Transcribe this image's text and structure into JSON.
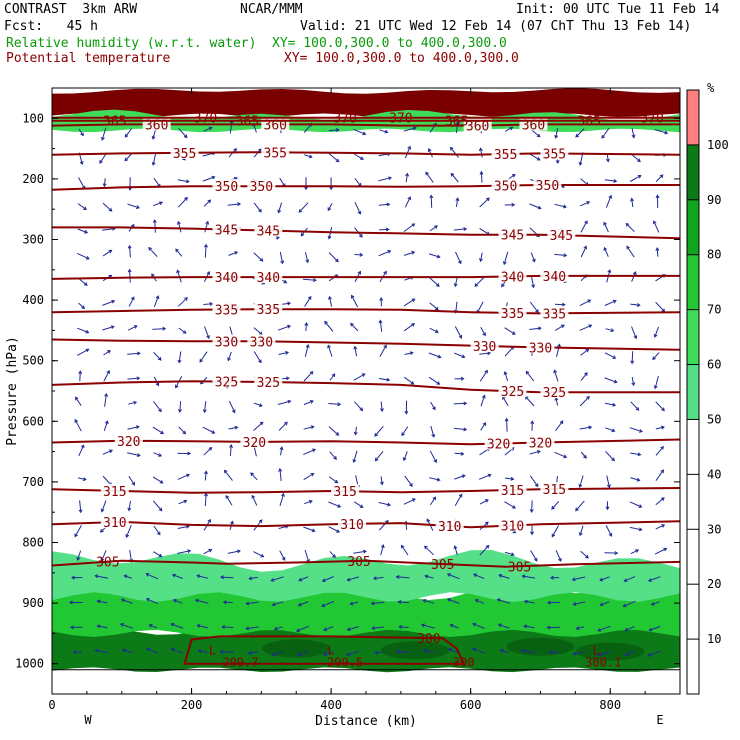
{
  "header": {
    "model": "CONTRAST  3km ARW",
    "center": "NCAR/MMM",
    "init": "Init: 00 UTC Tue 11 Feb 14",
    "fcst": "Fcst:   45 h",
    "valid": "Valid: 21 UTC Wed 12 Feb 14 (07 ChT Thu 13 Feb 14)",
    "rh_field": "Relative humidity (w.r.t. water)",
    "rh_xy": "XY= 100.0,300.0 to 400.0,300.0",
    "theta_field": "Potential temperature",
    "theta_xy": "XY= 100.0,300.0 to 400.0,300.0"
  },
  "colors": {
    "theta_line": "#8b0000",
    "wind_arrow": "#1e2a96",
    "rh_50_60": "#55e088",
    "rh_60_70": "#3fdc5a",
    "rh_70_80": "#22c833",
    "rh_80_90": "#11a51f",
    "rh_90_100": "#0c7a16",
    "rh_100_plus": "#ff7f7f"
  },
  "chart_data": {
    "type": "heatmap",
    "xlabel": "Distance (km)",
    "ylabel": "Pressure (hPa)",
    "x_range": [
      0,
      900
    ],
    "y_range": [
      1050,
      50
    ],
    "y_scale": "linear, inverted",
    "x_ticks": [
      "0",
      "200",
      "400",
      "600",
      "800"
    ],
    "y_ticks": [
      "100",
      "200",
      "300",
      "400",
      "500",
      "600",
      "700",
      "800",
      "900",
      "1000"
    ],
    "x_end_labels": {
      "left": "W",
      "right": "E"
    },
    "colorbar": {
      "unit": "%",
      "levels": [
        "10",
        "20",
        "30",
        "40",
        "50",
        "60",
        "70",
        "80",
        "90",
        "100"
      ],
      "filled_bins": [
        {
          "from": 50,
          "to": 60,
          "color": "#55e088"
        },
        {
          "from": 60,
          "to": 70,
          "color": "#3fdc5a"
        },
        {
          "from": 70,
          "to": 80,
          "color": "#22c833"
        },
        {
          "from": 80,
          "to": 90,
          "color": "#11a51f"
        },
        {
          "from": 90,
          "to": 100,
          "color": "#0c7a16"
        },
        {
          "from": 100,
          "to": 110,
          "color": "#ff7f7f"
        }
      ]
    },
    "rh_regions": [
      {
        "name": "stratosphere-cap",
        "p_top": 55,
        "p_bottom": 95,
        "rh": ">100",
        "color": "#7a0000"
      },
      {
        "name": "tropopause-moist-band",
        "p_top": 95,
        "p_bottom": 120,
        "rh": "60-90",
        "color": "#3fdc5a"
      },
      {
        "name": "boundary-layer-lower",
        "p_top": 940,
        "p_bottom": 1010,
        "rh": "90-100",
        "color": "#0c7a16"
      },
      {
        "name": "boundary-layer-mid",
        "p_top": 880,
        "p_bottom": 950,
        "rh": "70-90",
        "color": "#22c833"
      },
      {
        "name": "boundary-layer-top",
        "p_top": 830,
        "p_bottom": 890,
        "rh": "50-70",
        "color": "#55e088"
      }
    ],
    "theta_contours": [
      {
        "level": "300",
        "p": [
          1000,
          960,
          955,
          955,
          958,
          975,
          1000
        ],
        "x": [
          190,
          200,
          240,
          400,
          560,
          580,
          590
        ],
        "labels": [
          {
            "x": 540,
            "text": "300"
          }
        ]
      },
      {
        "level": "305",
        "p": [
          838,
          830,
          833,
          835,
          833,
          830,
          835,
          840,
          836,
          832
        ],
        "x": [
          0,
          100,
          200,
          250,
          350,
          450,
          550,
          650,
          750,
          900
        ],
        "labels": [
          {
            "x": 80,
            "text": "305"
          },
          {
            "x": 440,
            "text": "305"
          },
          {
            "x": 560,
            "text": "305"
          },
          {
            "x": 670,
            "text": "305"
          }
        ]
      },
      {
        "level": "310",
        "p": [
          770,
          766,
          771,
          773,
          770,
          768,
          775,
          770,
          765
        ],
        "x": [
          0,
          100,
          200,
          300,
          400,
          500,
          600,
          700,
          900
        ],
        "labels": [
          {
            "x": 90,
            "text": "310"
          },
          {
            "x": 430,
            "text": "310"
          },
          {
            "x": 570,
            "text": "310"
          },
          {
            "x": 660,
            "text": "310"
          }
        ]
      },
      {
        "level": "315",
        "p": [
          712,
          715,
          718,
          717,
          715,
          717,
          715,
          712,
          710
        ],
        "x": [
          0,
          100,
          200,
          300,
          400,
          500,
          600,
          700,
          900
        ],
        "labels": [
          {
            "x": 90,
            "text": "315"
          },
          {
            "x": 420,
            "text": "315"
          },
          {
            "x": 660,
            "text": "315"
          },
          {
            "x": 720,
            "text": "315"
          }
        ]
      },
      {
        "level": "320",
        "p": [
          635,
          632,
          633,
          634,
          633,
          635,
          638,
          635,
          630
        ],
        "x": [
          0,
          100,
          200,
          300,
          400,
          500,
          600,
          700,
          900
        ],
        "labels": [
          {
            "x": 110,
            "text": "320"
          },
          {
            "x": 290,
            "text": "320"
          },
          {
            "x": 640,
            "text": "320"
          },
          {
            "x": 700,
            "text": "320"
          }
        ]
      },
      {
        "level": "325",
        "p": [
          540,
          536,
          534,
          535,
          537,
          540,
          548,
          552,
          552
        ],
        "x": [
          0,
          100,
          200,
          300,
          400,
          500,
          600,
          700,
          900
        ],
        "labels": [
          {
            "x": 250,
            "text": "325"
          },
          {
            "x": 310,
            "text": "325"
          },
          {
            "x": 660,
            "text": "325"
          },
          {
            "x": 720,
            "text": "325"
          }
        ]
      },
      {
        "level": "330",
        "p": [
          465,
          467,
          468,
          468,
          470,
          472,
          475,
          478,
          482
        ],
        "x": [
          0,
          100,
          200,
          300,
          400,
          500,
          600,
          700,
          900
        ],
        "labels": [
          {
            "x": 250,
            "text": "330"
          },
          {
            "x": 300,
            "text": "330"
          },
          {
            "x": 620,
            "text": "330"
          },
          {
            "x": 700,
            "text": "330"
          }
        ]
      },
      {
        "level": "335",
        "p": [
          420,
          418,
          416,
          415,
          415,
          416,
          420,
          422,
          420
        ],
        "x": [
          0,
          100,
          200,
          300,
          400,
          500,
          600,
          700,
          900
        ],
        "labels": [
          {
            "x": 250,
            "text": "335"
          },
          {
            "x": 310,
            "text": "335"
          },
          {
            "x": 660,
            "text": "335"
          },
          {
            "x": 720,
            "text": "335"
          }
        ]
      },
      {
        "level": "340",
        "p": [
          365,
          363,
          362,
          362,
          362,
          362,
          362,
          360,
          360
        ],
        "x": [
          0,
          100,
          200,
          300,
          400,
          500,
          600,
          700,
          900
        ],
        "labels": [
          {
            "x": 250,
            "text": "340"
          },
          {
            "x": 310,
            "text": "340"
          },
          {
            "x": 660,
            "text": "340"
          },
          {
            "x": 720,
            "text": "340"
          }
        ]
      },
      {
        "level": "345",
        "p": [
          280,
          280,
          282,
          285,
          288,
          290,
          292,
          292,
          298
        ],
        "x": [
          0,
          100,
          200,
          300,
          400,
          500,
          600,
          700,
          900
        ],
        "labels": [
          {
            "x": 250,
            "text": "345"
          },
          {
            "x": 310,
            "text": "345"
          },
          {
            "x": 660,
            "text": "345"
          },
          {
            "x": 730,
            "text": "345"
          }
        ]
      },
      {
        "level": "350",
        "p": [
          218,
          214,
          212,
          212,
          212,
          213,
          212,
          210,
          210
        ],
        "x": [
          0,
          100,
          200,
          300,
          400,
          500,
          600,
          700,
          900
        ],
        "labels": [
          {
            "x": 250,
            "text": "350"
          },
          {
            "x": 300,
            "text": "350"
          },
          {
            "x": 650,
            "text": "350"
          },
          {
            "x": 710,
            "text": "350"
          }
        ]
      },
      {
        "level": "355",
        "p": [
          160,
          158,
          157,
          156,
          157,
          158,
          160,
          158,
          160
        ],
        "x": [
          0,
          100,
          200,
          300,
          400,
          500,
          600,
          700,
          900
        ],
        "labels": [
          {
            "x": 190,
            "text": "355"
          },
          {
            "x": 320,
            "text": "355"
          },
          {
            "x": 650,
            "text": "355"
          },
          {
            "x": 720,
            "text": "355"
          }
        ]
      },
      {
        "level": "360",
        "p": [
          112,
          110,
          110,
          110,
          110,
          112,
          112,
          110,
          110
        ],
        "x": [
          0,
          100,
          200,
          300,
          400,
          500,
          600,
          700,
          900
        ],
        "labels": [
          {
            "x": 150,
            "text": "360"
          },
          {
            "x": 320,
            "text": "360"
          },
          {
            "x": 610,
            "text": "360"
          },
          {
            "x": 690,
            "text": "360"
          }
        ]
      },
      {
        "level": "365",
        "p": [
          104,
          104,
          104,
          104,
          104,
          104,
          104,
          104,
          104
        ],
        "x": [
          0,
          100,
          200,
          300,
          400,
          500,
          600,
          700,
          900
        ],
        "labels": [
          {
            "x": 90,
            "text": "365"
          },
          {
            "x": 280,
            "text": "365"
          },
          {
            "x": 580,
            "text": "365"
          },
          {
            "x": 770,
            "text": "365"
          }
        ]
      },
      {
        "level": "370",
        "p": [
          99,
          99,
          99,
          99,
          99,
          99,
          99,
          99,
          99
        ],
        "x": [
          0,
          100,
          200,
          300,
          400,
          500,
          600,
          700,
          900
        ],
        "labels": [
          {
            "x": 220,
            "text": "370"
          },
          {
            "x": 420,
            "text": "370"
          },
          {
            "x": 500,
            "text": "370"
          },
          {
            "x": 860,
            "text": "370"
          }
        ]
      }
    ],
    "surface_labels": [
      {
        "x": 270,
        "p": 1000,
        "text": "299.7"
      },
      {
        "x": 420,
        "p": 1000,
        "text": "299.5"
      },
      {
        "x": 590,
        "p": 1000,
        "text": "300"
      },
      {
        "x": 790,
        "p": 1000,
        "text": "300.1"
      }
    ],
    "low_markers": [
      {
        "x": 230,
        "p": 985,
        "text": "L"
      },
      {
        "x": 400,
        "p": 985,
        "text": "L"
      },
      {
        "x": 780,
        "p": 985,
        "text": "L"
      }
    ],
    "wind_vectors": "circulation arrows in the x-pressure plane at every grid point"
  }
}
